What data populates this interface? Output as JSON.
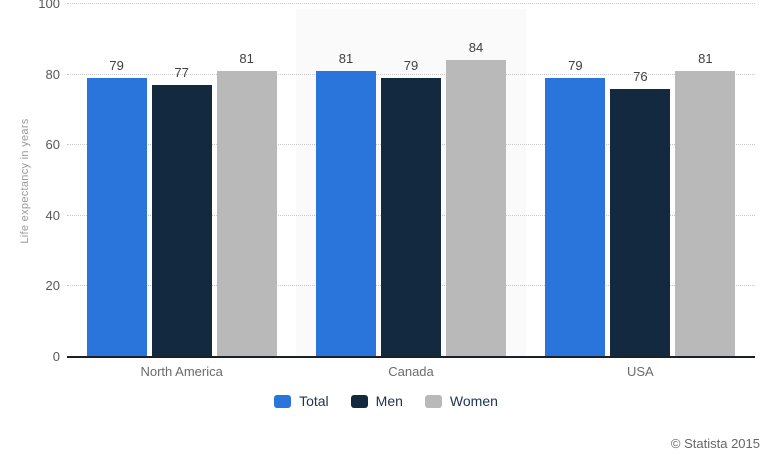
{
  "chart_data": {
    "type": "bar",
    "categories": [
      "North America",
      "Canada",
      "USA"
    ],
    "series": [
      {
        "name": "Total",
        "color": "#2a75dc",
        "values": [
          79,
          81,
          79
        ]
      },
      {
        "name": "Men",
        "color": "#13293f",
        "values": [
          77,
          79,
          76
        ]
      },
      {
        "name": "Women",
        "color": "#b9b9b9",
        "values": [
          81,
          84,
          81
        ]
      }
    ],
    "ylabel": "Life expectancy in years",
    "ylim": [
      0,
      100
    ],
    "yticks": [
      0,
      20,
      40,
      60,
      80,
      100
    ],
    "grid": "horizontal-dotted",
    "legend_position": "bottom-center",
    "highlight_category": "Canada",
    "highlight_color": "#fafafa"
  },
  "attribution": "© Statista 2015"
}
